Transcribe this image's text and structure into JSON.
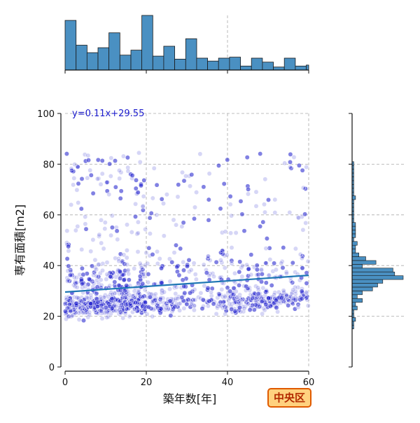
{
  "chart_data": {
    "type": "scatter",
    "xlabel": "築年数[年]",
    "ylabel": "専有面積[m2]",
    "xlim": [
      0,
      60
    ],
    "ylim": [
      0,
      100
    ],
    "x_ticks": [
      "0",
      "20",
      "40",
      "60"
    ],
    "y_ticks": [
      "0",
      "20",
      "40",
      "60",
      "80",
      "100"
    ],
    "grid": true,
    "regression": {
      "label": "y=0.11x+29.55",
      "slope": 0.11,
      "intercept": 29.55
    },
    "top_histogram": {
      "bin_width": 2.7,
      "counts": [
        100,
        50,
        35,
        45,
        75,
        30,
        40,
        110,
        28,
        48,
        22,
        63,
        24,
        18,
        24,
        26,
        8,
        24,
        16,
        6,
        24,
        8,
        10
      ]
    },
    "right_histogram": {
      "bin_width": 1.5,
      "bins_from_y": 15,
      "counts": [
        1,
        1,
        2,
        1,
        1,
        3,
        2,
        6,
        3,
        6,
        12,
        15,
        18,
        30,
        25,
        24,
        6,
        14,
        8,
        4,
        2,
        2,
        3,
        1,
        2,
        2,
        2,
        2,
        1,
        1,
        1,
        1,
        1,
        1,
        2,
        1,
        1,
        1,
        1,
        1,
        1,
        1,
        1,
        1
      ]
    },
    "point_color": "#1a1acc",
    "line_color": "#1f77b4",
    "bar_color": "#4a90c2"
  },
  "badge": {
    "label": "中央区",
    "fill": "#ffd27f",
    "border": "#e05a00"
  }
}
